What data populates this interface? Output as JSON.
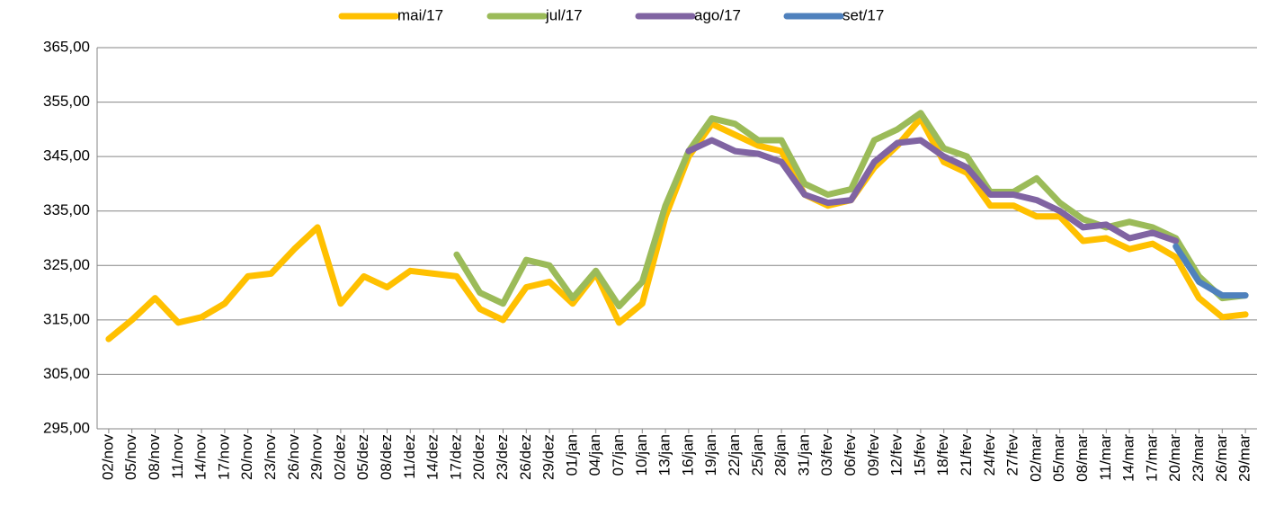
{
  "chart_data": {
    "type": "line",
    "categories": [
      "02/nov",
      "05/nov",
      "08/nov",
      "11/nov",
      "14/nov",
      "17/nov",
      "20/nov",
      "23/nov",
      "26/nov",
      "29/nov",
      "02/dez",
      "05/dez",
      "08/dez",
      "11/dez",
      "14/dez",
      "17/dez",
      "20/dez",
      "23/dez",
      "26/dez",
      "29/dez",
      "01/jan",
      "04/jan",
      "07/jan",
      "10/jan",
      "13/jan",
      "16/jan",
      "19/jan",
      "22/jan",
      "25/jan",
      "28/jan",
      "31/jan",
      "03/fev",
      "06/fev",
      "09/fev",
      "12/fev",
      "15/fev",
      "18/fev",
      "21/fev",
      "24/fev",
      "27/fev",
      "02/mar",
      "05/mar",
      "08/mar",
      "11/mar",
      "14/mar",
      "17/mar",
      "20/mar",
      "23/mar",
      "26/mar",
      "29/mar"
    ],
    "series": [
      {
        "name": "mai/17",
        "color": "#FFC000",
        "values": [
          311.5,
          315,
          319,
          314.5,
          315.5,
          318,
          323,
          323.5,
          328,
          332,
          318,
          323,
          321,
          324,
          323.5,
          323,
          317,
          315,
          321,
          322,
          318,
          323.5,
          314.5,
          318,
          334,
          345,
          351,
          349,
          347,
          346,
          338,
          336,
          337,
          343,
          347,
          352,
          344,
          342,
          336,
          336,
          334,
          334,
          329.5,
          330,
          328,
          329,
          326.5,
          319,
          315.5,
          316
        ]
      },
      {
        "name": "jul/17",
        "color": "#9BBB59",
        "values": [
          null,
          null,
          null,
          null,
          null,
          null,
          null,
          null,
          null,
          null,
          null,
          null,
          null,
          null,
          null,
          327,
          320,
          318,
          326,
          325,
          319,
          324,
          317.5,
          322,
          336,
          346,
          352,
          351,
          348,
          348,
          340,
          338,
          339,
          348,
          350,
          353,
          346.5,
          345,
          338.5,
          338.5,
          341,
          336.5,
          333.5,
          332,
          333,
          332,
          330,
          323,
          319,
          319.5
        ]
      },
      {
        "name": "ago/17",
        "color": "#8064A2",
        "values": [
          null,
          null,
          null,
          null,
          null,
          null,
          null,
          null,
          null,
          null,
          null,
          null,
          null,
          null,
          null,
          null,
          null,
          null,
          null,
          null,
          null,
          null,
          null,
          null,
          null,
          346,
          348,
          346,
          345.5,
          344,
          338,
          336.5,
          337,
          344,
          347.5,
          348,
          345,
          343,
          338,
          338,
          337,
          335,
          332,
          332.5,
          330,
          331,
          329.5,
          null,
          null,
          null
        ]
      },
      {
        "name": "set/17",
        "color": "#4F81BD",
        "values": [
          null,
          null,
          null,
          null,
          null,
          null,
          null,
          null,
          null,
          null,
          null,
          null,
          null,
          null,
          null,
          null,
          null,
          null,
          null,
          null,
          null,
          null,
          null,
          null,
          null,
          null,
          null,
          null,
          null,
          null,
          null,
          null,
          null,
          null,
          null,
          null,
          null,
          null,
          null,
          null,
          null,
          null,
          null,
          null,
          null,
          null,
          328.5,
          322,
          319.5,
          319.5
        ]
      }
    ],
    "ylim": [
      295,
      365
    ],
    "yticks": [
      {
        "value": 295,
        "label": "295,00"
      },
      {
        "value": 305,
        "label": "305,00"
      },
      {
        "value": 315,
        "label": "315,00"
      },
      {
        "value": 325,
        "label": "325,00"
      },
      {
        "value": 335,
        "label": "335,00"
      },
      {
        "value": 345,
        "label": "345,00"
      },
      {
        "value": 355,
        "label": "355,00"
      },
      {
        "value": 365,
        "label": "365,00"
      }
    ],
    "grid": true,
    "legend": "top"
  }
}
